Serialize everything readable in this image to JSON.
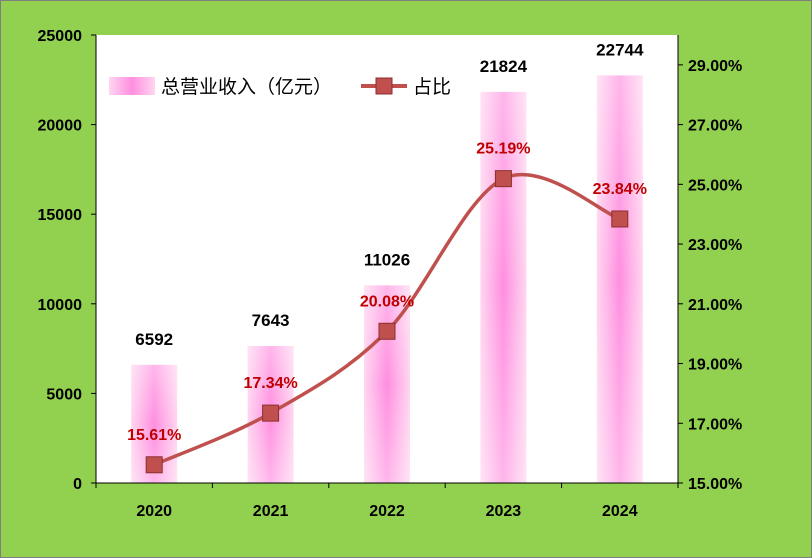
{
  "chart_data": {
    "type": "bar+line",
    "categories": [
      "2020",
      "2021",
      "2022",
      "2023",
      "2024"
    ],
    "series": [
      {
        "name": "总营业收入（亿元）",
        "type": "bar",
        "axis": "left",
        "values": [
          6592,
          7643,
          11026,
          21824,
          22744
        ],
        "labels": [
          "6592",
          "7643",
          "11026",
          "21824",
          "22744"
        ]
      },
      {
        "name": "占比",
        "type": "line",
        "axis": "right",
        "values": [
          15.61,
          17.34,
          20.08,
          25.19,
          23.84
        ],
        "labels": [
          "15.61%",
          "17.34%",
          "20.08%",
          "25.19%",
          "23.84%"
        ]
      }
    ],
    "y_left": {
      "range": [
        0,
        25000
      ],
      "ticks": [
        0,
        5000,
        10000,
        15000,
        20000,
        25000
      ],
      "tick_labels": [
        "0",
        "5000",
        "10000",
        "15000",
        "20000",
        "25000"
      ]
    },
    "y_right": {
      "range": [
        15,
        30
      ],
      "ticks": [
        15,
        17,
        19,
        21,
        23,
        25,
        27,
        29
      ],
      "tick_labels": [
        "15.00%",
        "17.00%",
        "19.00%",
        "21.00%",
        "23.00%",
        "25.00%",
        "27.00%",
        "29.00%"
      ]
    },
    "grid": false,
    "legend": "top-left",
    "colors": {
      "frame_background": "#92d050",
      "plot_background": "#ffffff",
      "bar_edge": "#ffd6f0",
      "bar_center": "#ff8ee0",
      "line": "#c0504d",
      "marker_fill": "#c0504d",
      "marker_stroke": "#8b2f2c",
      "percent_label": "#c00000"
    }
  }
}
